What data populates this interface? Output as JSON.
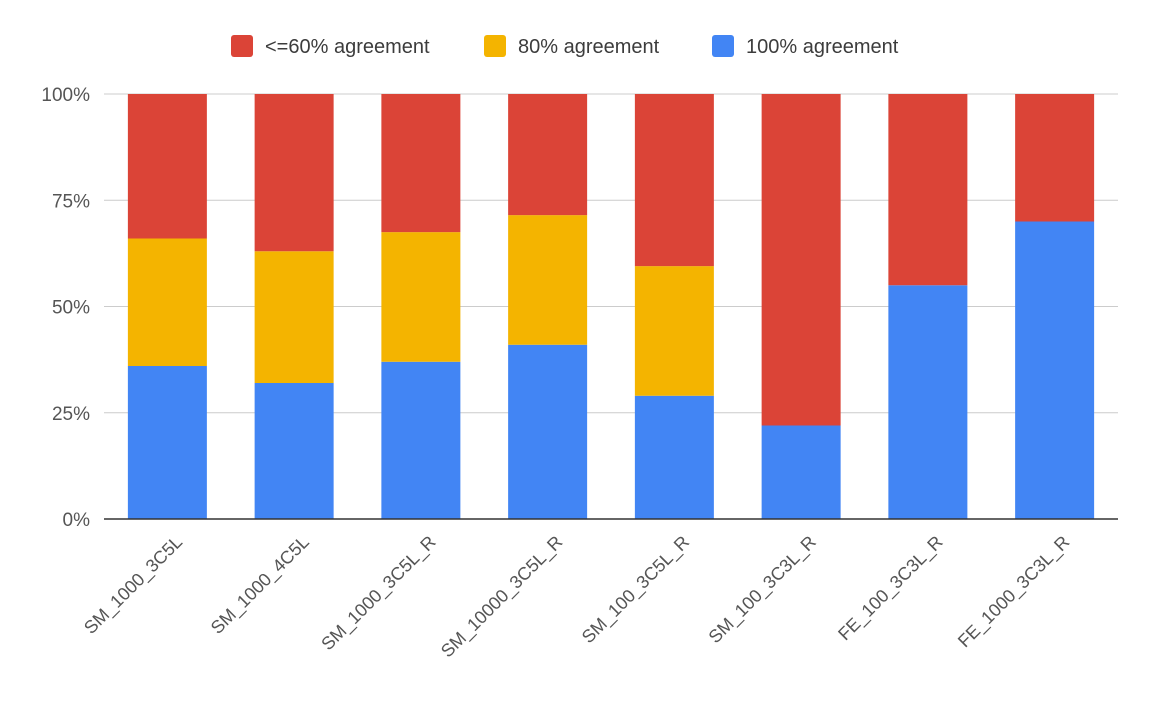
{
  "chart_data": {
    "type": "bar",
    "stacked": true,
    "normalized": true,
    "title": "",
    "xlabel": "",
    "ylabel": "",
    "ylim": [
      0,
      100
    ],
    "yticks": [
      "0%",
      "25%",
      "50%",
      "75%",
      "100%"
    ],
    "grid": true,
    "legend_position": "top",
    "categories": [
      "SM_1000_3C5L",
      "SM_1000_4C5L",
      "SM_1000_3C5L_R",
      "SM_10000_3C5L_R",
      "SM_100_3C5L_R",
      "SM_100_3C3L_R",
      "FE_100_3C3L_R",
      "FE_1000_3C3L_R"
    ],
    "series": [
      {
        "name": "100% agreement",
        "color": "#4285f4",
        "values": [
          36,
          32,
          37,
          41,
          29,
          22,
          55,
          70
        ]
      },
      {
        "name": "80% agreement",
        "color": "#f4b400",
        "values": [
          30,
          31,
          30.5,
          30.5,
          30.5,
          0,
          0,
          0
        ]
      },
      {
        "name": "<=60% agreement",
        "color": "#db4437",
        "values": [
          34,
          37,
          32.5,
          28.5,
          40.5,
          78,
          45,
          30
        ]
      }
    ],
    "legend_order": [
      "<=60% agreement",
      "80% agreement",
      "100% agreement"
    ]
  }
}
